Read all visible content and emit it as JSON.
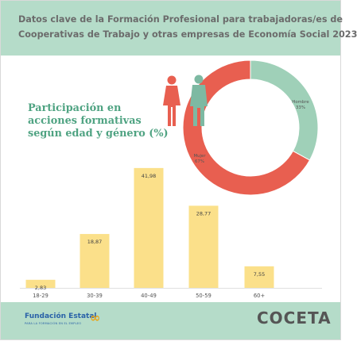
{
  "header": {
    "title_line1": "Datos clave de la Formación Profesional para trabajadoras/es de",
    "title_line2": "Cooperativas de Trabajo y otras empresas de Economía Social 2023"
  },
  "subtitle": {
    "line1": "Participación en",
    "line2": "acciones formativas",
    "line3": "según edad y género (%)"
  },
  "footer": {
    "fundacion": "Fundación Estatal",
    "fundacion_sub": "PARA LA FORMACIÓN EN EL EMPLEO",
    "coceta": "COCETA"
  },
  "colors": {
    "header_bg": "#b5dcc9",
    "bar": "#fbe08a",
    "donut_mujer": "#e85f50",
    "donut_hombre": "#9fd0b8",
    "female_icon": "#e85f50",
    "male_icon": "#7db9a2"
  },
  "icons": [
    "female-person-icon",
    "male-person-icon",
    "fundacion-logo-icon"
  ],
  "chart_data": [
    {
      "type": "bar",
      "categories": [
        "18-29",
        "30-39",
        "40-49",
        "50-59",
        "60+"
      ],
      "values": [
        2.83,
        18.87,
        41.98,
        28.77,
        7.55
      ],
      "value_labels": [
        "2,83",
        "18,87",
        "41,98",
        "28,77",
        "7,55"
      ],
      "ylim": [
        0,
        45
      ],
      "grid": false,
      "legend": "none"
    },
    {
      "type": "pie",
      "style": "donut",
      "categories": [
        "Hombre",
        "Mujer"
      ],
      "values": [
        33,
        67
      ],
      "value_labels": [
        "33%",
        "67%"
      ],
      "colors": [
        "#9fd0b8",
        "#e85f50"
      ]
    }
  ]
}
